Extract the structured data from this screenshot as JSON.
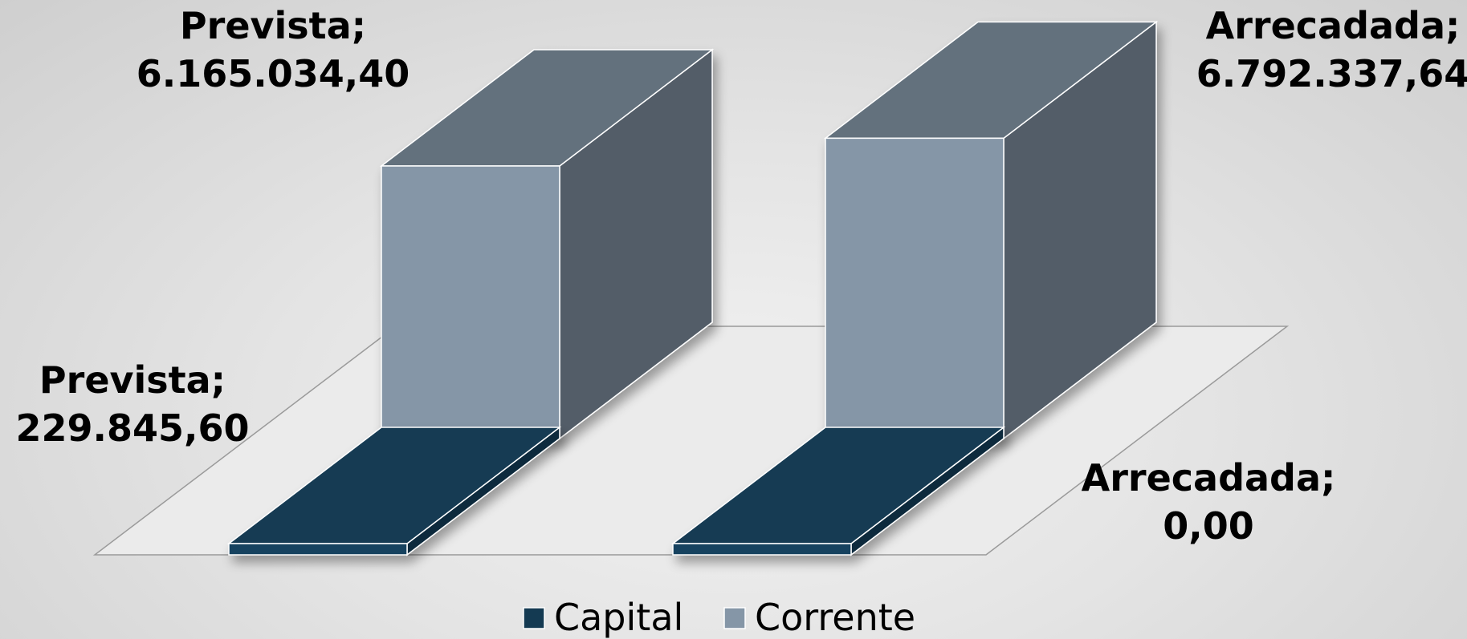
{
  "chart_data": {
    "type": "bar",
    "subtype": "3d-clustered-column",
    "categories": [
      "Prevista",
      "Arrecadada"
    ],
    "series": [
      {
        "name": "Capital",
        "color": "#143a52",
        "values": [
          229845.6,
          0.0
        ],
        "value_labels": [
          "229.845,60",
          "0,00"
        ]
      },
      {
        "name": "Corrente",
        "color": "#8596a7",
        "values": [
          6165034.4,
          6792337.64
        ],
        "value_labels": [
          "6.165.034,40",
          "6.792.337,64"
        ]
      }
    ],
    "label_format": "category; value",
    "legend": {
      "position": "bottom",
      "items": [
        "Capital",
        "Corrente"
      ]
    },
    "grid": false,
    "axes_visible": false
  }
}
